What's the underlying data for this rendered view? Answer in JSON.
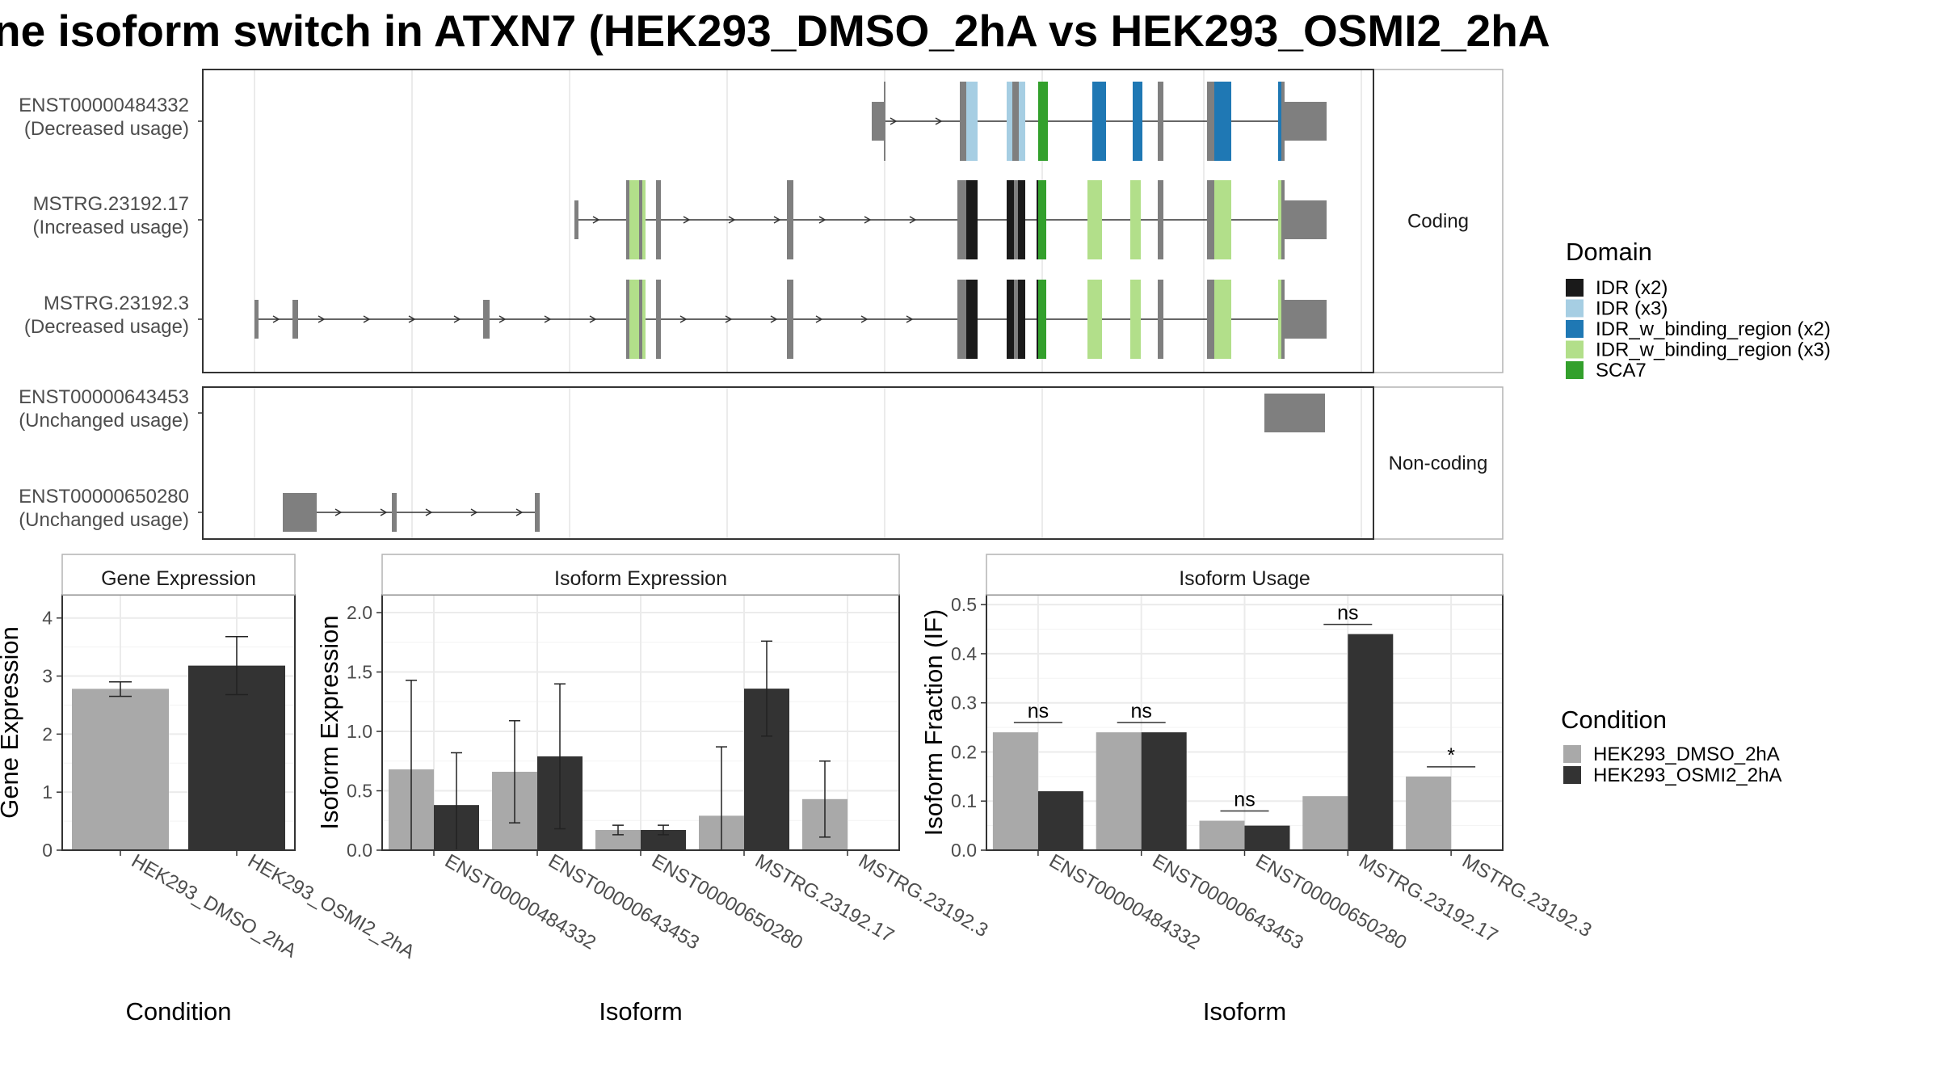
{
  "title": "ne isoform switch in ATXN7 (HEK293_DMSO_2hA vs HEK293_OSMI2_2hA",
  "colors": {
    "grey_exon": "#7f7f7f",
    "idr_x2": "#1a1a1a",
    "idr_x3": "#a6cee3",
    "idr_binding_x2": "#1f78b4",
    "idr_binding_x3": "#b2df8a",
    "sca7": "#33a02c",
    "cond_dmso": "#a9a9a9",
    "cond_osmi": "#333333"
  },
  "structure": {
    "coding_label": "Coding",
    "noncoding_label": "Non-coding",
    "coding_isoforms": [
      {
        "id": "ENST00000484332",
        "usage": "(Decreased usage)"
      },
      {
        "id": "MSTRG.23192.17",
        "usage": "(Increased usage)"
      },
      {
        "id": "MSTRG.23192.3",
        "usage": "(Decreased usage)"
      }
    ],
    "noncoding_isoforms": [
      {
        "id": "ENST00000643453",
        "usage": "(Unchanged usage)"
      },
      {
        "id": "ENST00000650280",
        "usage": "(Unchanged usage)"
      }
    ]
  },
  "domain_legend": {
    "title": "Domain",
    "items": [
      {
        "label": "IDR (x2)",
        "color": "#1a1a1a"
      },
      {
        "label": "IDR (x3)",
        "color": "#a6cee3"
      },
      {
        "label": "IDR_w_binding_region (x2)",
        "color": "#1f78b4"
      },
      {
        "label": "IDR_w_binding_region (x3)",
        "color": "#b2df8a"
      },
      {
        "label": "SCA7",
        "color": "#33a02c"
      }
    ]
  },
  "condition_legend": {
    "title": "Condition",
    "items": [
      {
        "label": "HEK293_DMSO_2hA",
        "color": "#a9a9a9"
      },
      {
        "label": "HEK293_OSMI2_2hA",
        "color": "#333333"
      }
    ]
  },
  "chart_data": [
    {
      "type": "bar",
      "title": "Gene Expression",
      "xlabel": "Condition",
      "ylabel": "Gene Expression",
      "ylim": [
        0,
        4.4
      ],
      "yticks": [
        0,
        1,
        2,
        3,
        4
      ],
      "categories": [
        "HEK293_DMSO_2hA",
        "HEK293_OSMI2_2hA"
      ],
      "values": [
        2.78,
        3.18
      ],
      "errors": [
        [
          2.65,
          2.9
        ],
        [
          2.68,
          3.68
        ]
      ]
    },
    {
      "type": "bar",
      "title": "Isoform Expression",
      "xlabel": "Isoform",
      "ylabel": "Isoform Expression",
      "ylim": [
        0,
        2.15
      ],
      "yticks": [
        0.0,
        0.5,
        1.0,
        1.5,
        2.0
      ],
      "categories": [
        "ENST00000484332",
        "ENST00000643453",
        "ENST00000650280",
        "MSTRG.23192.17",
        "MSTRG.23192.3"
      ],
      "series": [
        {
          "name": "HEK293_DMSO_2hA",
          "values": [
            0.68,
            0.66,
            0.17,
            0.29,
            0.43
          ],
          "errors": [
            [
              0.0,
              1.43
            ],
            [
              0.23,
              1.09
            ],
            [
              0.13,
              0.21
            ],
            [
              0.0,
              0.87
            ],
            [
              0.11,
              0.75
            ]
          ]
        },
        {
          "name": "HEK293_OSMI2_2hA",
          "values": [
            0.38,
            0.79,
            0.17,
            1.36,
            0.0
          ],
          "errors": [
            [
              0.0,
              0.82
            ],
            [
              0.18,
              1.4
            ],
            [
              0.13,
              0.21
            ],
            [
              0.96,
              1.76
            ],
            [
              0.0,
              0.0
            ]
          ]
        }
      ]
    },
    {
      "type": "bar",
      "title": "Isoform Usage",
      "xlabel": "Isoform",
      "ylabel": "Isoform Fraction (IF)",
      "ylim": [
        0,
        0.52
      ],
      "yticks": [
        0.0,
        0.1,
        0.2,
        0.3,
        0.4,
        0.5
      ],
      "categories": [
        "ENST00000484332",
        "ENST00000643453",
        "ENST00000650280",
        "MSTRG.23192.17",
        "MSTRG.23192.3"
      ],
      "series": [
        {
          "name": "HEK293_DMSO_2hA",
          "values": [
            0.24,
            0.24,
            0.06,
            0.11,
            0.15
          ]
        },
        {
          "name": "HEK293_OSMI2_2hA",
          "values": [
            0.12,
            0.24,
            0.05,
            0.44,
            0.0
          ]
        }
      ],
      "significance": [
        "ns",
        "ns",
        "ns",
        "ns",
        "*"
      ]
    }
  ]
}
